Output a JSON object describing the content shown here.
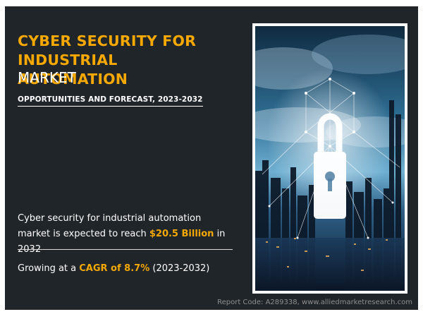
{
  "header": {
    "title": "CYBER SECURITY FOR INDUSTRIAL AUTOMATION",
    "title_suffix": "MARKET",
    "subtitle": "OPPORTUNITIES AND FORECAST, 2023-2032"
  },
  "stat1": {
    "prefix": "Cyber security for industrial automation market is expected to reach ",
    "highlight": "$20.5 Billion",
    "suffix": " in 2032"
  },
  "stat2": {
    "prefix": "Growing at a ",
    "highlight": "CAGR of 8.7%",
    "suffix": " (2023-2032)"
  },
  "image": {
    "subject": "padlock-over-city-skyline"
  },
  "footer": {
    "report_code": "Report Code: A289338, www.alliedmarketresearch.com"
  },
  "colors": {
    "accent": "#f5a800",
    "background": "#20252a",
    "text": "#ffffff",
    "muted": "#8e8e8e"
  }
}
